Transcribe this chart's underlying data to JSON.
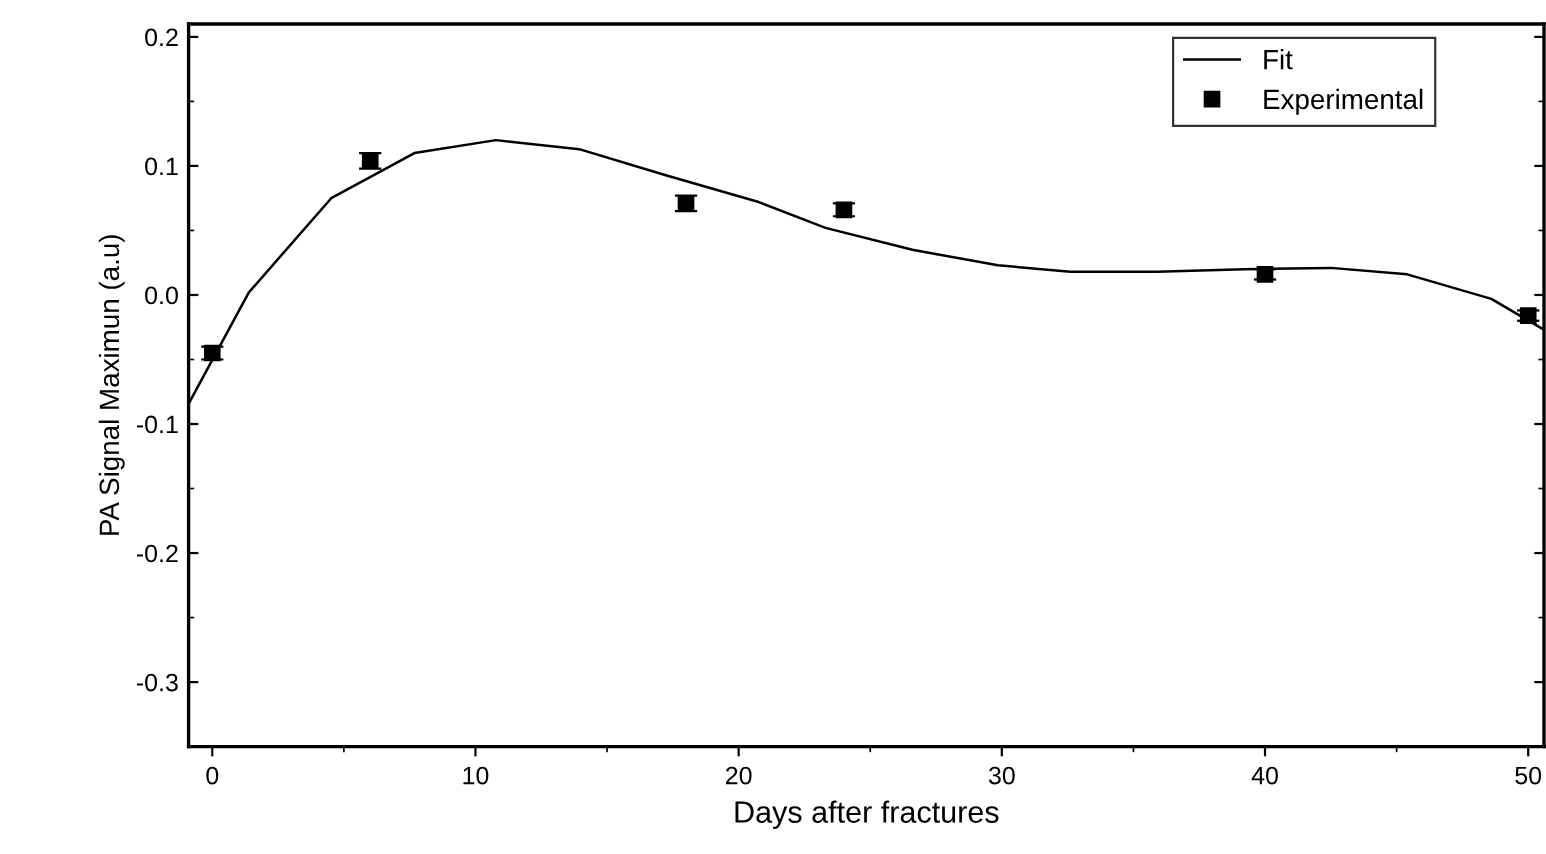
{
  "chart_data": {
    "type": "line",
    "xlabel": "Days after fractures",
    "ylabel": "PA Signal Maximun (a.u)",
    "xlim": [
      -0.9,
      50.6
    ],
    "xticks": [
      0,
      10,
      20,
      30,
      40,
      50
    ],
    "ylim": [
      -0.35,
      0.21
    ],
    "yticks": [
      -0.3,
      -0.2,
      -0.1,
      {
        "value": 0,
        "label": "0.0"
      },
      0.1,
      0.2
    ],
    "grid": false,
    "legend": "top right",
    "series": [
      {
        "name": "Fit",
        "color": "#000000",
        "marker": "none",
        "line_style": "solid",
        "x": [
          -0.89,
          1.39,
          4.52,
          7.68,
          10.78,
          13.94,
          17.2,
          20.76,
          23.3,
          26.6,
          29.85,
          32.6,
          35.9,
          39.2,
          42.5,
          45.4,
          48.6,
          50.6
        ],
        "values": [
          -0.084,
          0.002,
          0.075,
          0.11,
          0.12,
          0.113,
          0.093,
          0.072,
          0.052,
          0.035,
          0.023,
          0.018,
          0.018,
          0.02,
          0.021,
          0.016,
          -0.003,
          -0.027
        ]
      },
      {
        "name": "Experimental",
        "type": "scatter",
        "color": "#000000",
        "marker": "square",
        "x": [
          0,
          6,
          18,
          24,
          40,
          50
        ],
        "values": [
          -0.045,
          0.104,
          0.071,
          0.066,
          0.016,
          -0.016
        ],
        "errors": [
          0.005,
          0.006,
          0.006,
          0.005,
          0.004,
          0.004
        ]
      }
    ]
  }
}
